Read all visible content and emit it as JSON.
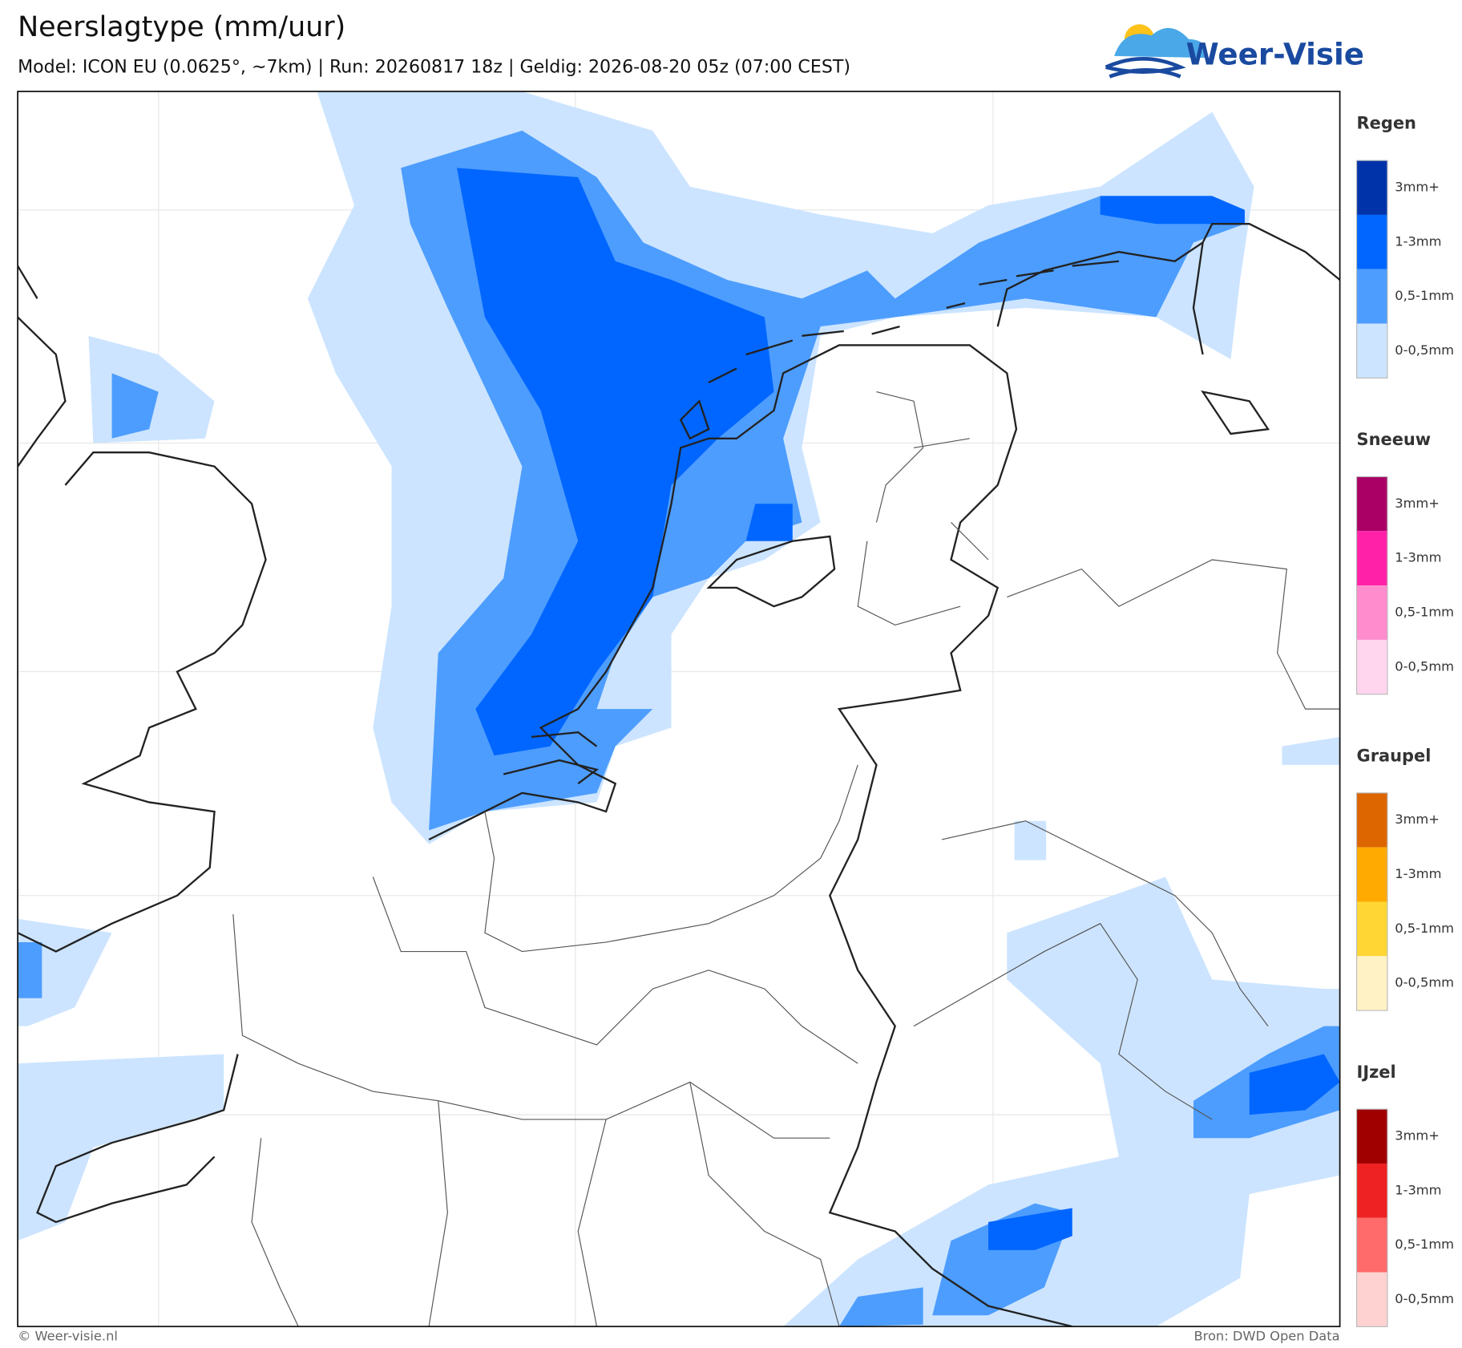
{
  "header": {
    "title": "Neerslagtype (mm/uur)",
    "subtitle": "Model: ICON EU (0.0625°, ~7km)  |  Run: 20260817 18z  |  Geldig: 2026-08-20 05z (07:00 CEST)",
    "logo": "Weer-Visie"
  },
  "legend": [
    {
      "title": "Regen",
      "items": [
        {
          "label": "3mm+",
          "color": "#0033aa"
        },
        {
          "label": "1-3mm",
          "color": "#0066ff"
        },
        {
          "label": "0,5-1mm",
          "color": "#4d9dff"
        },
        {
          "label": "0-0,5mm",
          "color": "#cce4ff"
        }
      ]
    },
    {
      "title": "Sneeuw",
      "items": [
        {
          "label": "3mm+",
          "color": "#aa0066"
        },
        {
          "label": "1-3mm",
          "color": "#ff22a8"
        },
        {
          "label": "0,5-1mm",
          "color": "#ff8ccc"
        },
        {
          "label": "0-0,5mm",
          "color": "#ffd6ee"
        }
      ]
    },
    {
      "title": "Graupel",
      "items": [
        {
          "label": "3mm+",
          "color": "#dd6600"
        },
        {
          "label": "1-3mm",
          "color": "#ffaa00"
        },
        {
          "label": "0,5-1mm",
          "color": "#ffd633"
        },
        {
          "label": "0-0,5mm",
          "color": "#fff2c4"
        }
      ]
    },
    {
      "title": "IJzel",
      "items": [
        {
          "label": "3mm+",
          "color": "#a00000"
        },
        {
          "label": "1-3mm",
          "color": "#ee2222"
        },
        {
          "label": "0,5-1mm",
          "color": "#ff6a6a"
        },
        {
          "label": "0-0,5mm",
          "color": "#ffd2d2"
        }
      ]
    }
  ],
  "footer": {
    "left": "© Weer-visie.nl",
    "right": "Bron: DWD Open Data"
  }
}
